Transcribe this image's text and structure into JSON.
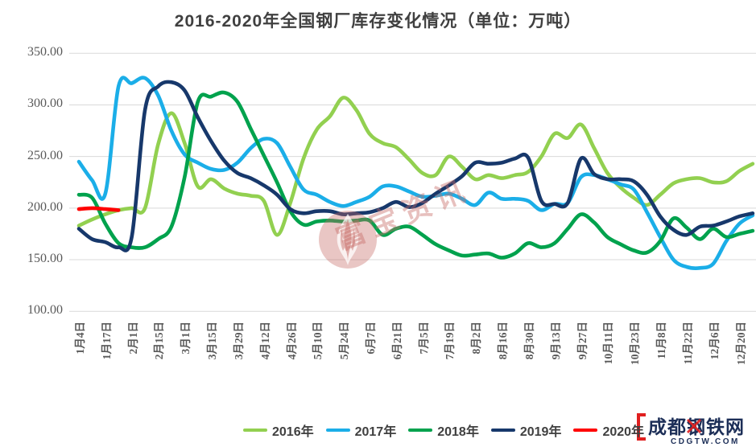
{
  "title": "2016-2020年全国钢厂库存变化情况（单位：万吨）",
  "chart_data": {
    "type": "line",
    "title": "2016-2020年全国钢厂库存变化情况（单位：万吨）",
    "ylabel": "",
    "xlabel": "",
    "ylim": [
      100,
      350
    ],
    "grid": "horizontal",
    "legend_position": "bottom",
    "y_ticks": [
      {
        "value": 350,
        "label": "350.00"
      },
      {
        "value": 300,
        "label": "300.00"
      },
      {
        "value": 250,
        "label": "250.00"
      },
      {
        "value": 200,
        "label": "200.00"
      },
      {
        "value": 150,
        "label": "150.00"
      },
      {
        "value": 100,
        "label": "100.00"
      }
    ],
    "x_tick_labels": [
      "1月4日",
      "1月17日",
      "2月1日",
      "2月15日",
      "3月1日",
      "3月15日",
      "3月29日",
      "4月12日",
      "4月26日",
      "5月10日",
      "5月24日",
      "6月7日",
      "6月21日",
      "7月5日",
      "7月19日",
      "8月2日",
      "8月16日",
      "8月30日",
      "9月13日",
      "9月27日",
      "10月11日",
      "10月23日",
      "11月8日",
      "11月22日",
      "12月6日",
      "12月20日"
    ],
    "points_per_x_label": 2,
    "series": [
      {
        "name": "2016年",
        "color": "#92D050",
        "values": [
          183,
          189,
          194,
          198,
          200,
          200,
          262,
          292,
          263,
          221,
          228,
          219,
          214,
          212,
          207,
          174,
          205,
          248,
          276,
          289,
          307,
          295,
          272,
          263,
          259,
          247,
          234,
          232,
          250,
          240,
          228,
          232,
          229,
          232,
          235,
          250,
          272,
          268,
          281,
          258,
          234,
          220,
          210,
          203,
          213,
          224,
          228,
          229,
          225,
          226,
          236,
          243
        ]
      },
      {
        "name": "2017年",
        "color": "#1BAEE8",
        "values": [
          245,
          227,
          214,
          318,
          321,
          326,
          309,
          275,
          252,
          244,
          238,
          237,
          244,
          258,
          267,
          263,
          240,
          218,
          213,
          206,
          202,
          206,
          211,
          221,
          221,
          216,
          211,
          212,
          214,
          209,
          203,
          215,
          209,
          209,
          207,
          198,
          204,
          205,
          230,
          232,
          228,
          223,
          218,
          196,
          172,
          150,
          143,
          142,
          146,
          168,
          185,
          193
        ]
      },
      {
        "name": "2018年",
        "color": "#00A24D",
        "values": [
          213,
          210,
          185,
          166,
          162,
          162,
          170,
          182,
          230,
          303,
          308,
          312,
          303,
          277,
          251,
          225,
          197,
          184,
          187,
          188,
          187,
          188,
          188,
          174,
          180,
          182,
          174,
          165,
          159,
          154,
          155,
          156,
          152,
          156,
          166,
          162,
          166,
          180,
          194,
          186,
          172,
          165,
          159,
          157,
          168,
          190,
          181,
          170,
          180,
          172,
          175,
          178
        ]
      },
      {
        "name": "2019年",
        "color": "#17386B",
        "values": [
          180,
          170,
          167,
          162,
          172,
          295,
          318,
          322,
          314,
          288,
          265,
          246,
          234,
          229,
          222,
          213,
          199,
          195,
          197,
          197,
          194,
          195,
          196,
          200,
          206,
          201,
          205,
          214,
          222,
          231,
          244,
          243,
          244,
          248,
          249,
          207,
          204,
          205,
          248,
          233,
          228,
          228,
          226,
          213,
          192,
          179,
          174,
          182,
          183,
          187,
          192,
          195
        ]
      },
      {
        "name": "2020年",
        "color": "#FF0000",
        "values": [
          199,
          200,
          199,
          198
        ]
      }
    ]
  },
  "watermarks": {
    "center_text": "富宝资讯",
    "site_name": "成都钢铁网",
    "site_url": "CDGTW.COM"
  },
  "colors": {
    "title_text": "#404040",
    "axis_text": "#595959",
    "gridline": "#D9D9D9",
    "watermark_pink": "#C56A64",
    "site_navy": "#1C2E57",
    "site_red": "#E01F1F"
  }
}
